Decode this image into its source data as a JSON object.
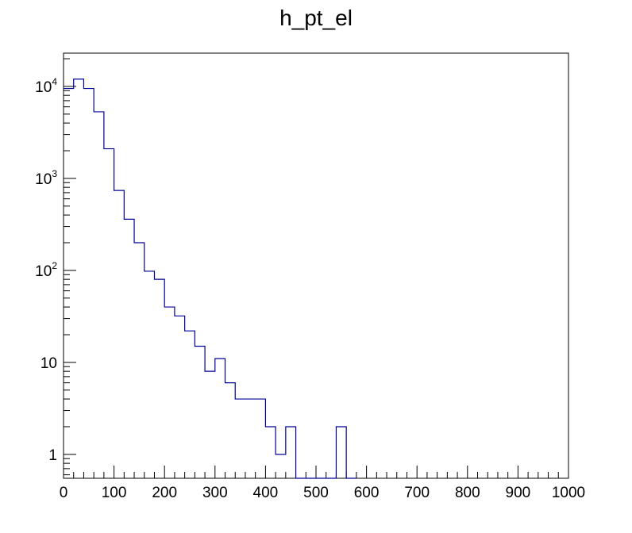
{
  "chart_data": {
    "type": "histogram",
    "title": "h_pt_el",
    "xlabel": "",
    "ylabel": "",
    "xlim": [
      0,
      1000
    ],
    "ylim": [
      0.55,
      23000
    ],
    "y_scale": "log",
    "grid": false,
    "line_color": "#00009a",
    "bin_width": 20,
    "x_tick_labels": [
      "0",
      "100",
      "200",
      "300",
      "400",
      "500",
      "600",
      "700",
      "800",
      "900",
      "1000"
    ],
    "y_tick_labels": [
      {
        "value": 1,
        "base": "1",
        "exp": ""
      },
      {
        "value": 10,
        "base": "10",
        "exp": ""
      },
      {
        "value": 100,
        "base": "10",
        "exp": "2"
      },
      {
        "value": 1000,
        "base": "10",
        "exp": "3"
      },
      {
        "value": 10000,
        "base": "10",
        "exp": "4"
      }
    ],
    "bins": [
      {
        "x": 0,
        "count": 9500
      },
      {
        "x": 20,
        "count": 12000
      },
      {
        "x": 40,
        "count": 9500
      },
      {
        "x": 60,
        "count": 5300
      },
      {
        "x": 80,
        "count": 2100
      },
      {
        "x": 100,
        "count": 740
      },
      {
        "x": 120,
        "count": 360
      },
      {
        "x": 140,
        "count": 200
      },
      {
        "x": 160,
        "count": 98
      },
      {
        "x": 180,
        "count": 80
      },
      {
        "x": 200,
        "count": 40
      },
      {
        "x": 220,
        "count": 32
      },
      {
        "x": 240,
        "count": 22
      },
      {
        "x": 260,
        "count": 15
      },
      {
        "x": 280,
        "count": 8
      },
      {
        "x": 300,
        "count": 11
      },
      {
        "x": 320,
        "count": 6
      },
      {
        "x": 340,
        "count": 4
      },
      {
        "x": 360,
        "count": 4
      },
      {
        "x": 380,
        "count": 4
      },
      {
        "x": 400,
        "count": 2
      },
      {
        "x": 420,
        "count": 1
      },
      {
        "x": 440,
        "count": 2
      },
      {
        "x": 460,
        "count": 0
      },
      {
        "x": 480,
        "count": 0
      },
      {
        "x": 500,
        "count": 0
      },
      {
        "x": 520,
        "count": 0
      },
      {
        "x": 540,
        "count": 2
      },
      {
        "x": 560,
        "count": 0
      }
    ]
  }
}
